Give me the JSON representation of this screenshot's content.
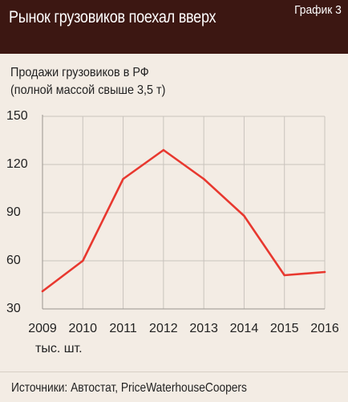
{
  "header": {
    "title": "Рынок грузовиков поехал вверх",
    "label": "График 3"
  },
  "chart_data": {
    "type": "line",
    "title": "Продажи грузовиков в РФ",
    "subtitle": "(полной массой свыше 3,5 т)",
    "x": [
      "2009",
      "2010",
      "2011",
      "2012",
      "2013",
      "2014",
      "2015",
      "2016"
    ],
    "series": [
      {
        "values": [
          41,
          60,
          111,
          129,
          111,
          88,
          51,
          53
        ]
      }
    ],
    "xlabel": "тыс. шт.",
    "ylabel": "",
    "ylim": [
      30,
      150
    ],
    "yticks": [
      30,
      60,
      90,
      120,
      150
    ],
    "grid": true,
    "line_color": "#e8382f"
  },
  "footer": {
    "source": "Источники: Автостат, PriceWaterhouseCoopers"
  }
}
